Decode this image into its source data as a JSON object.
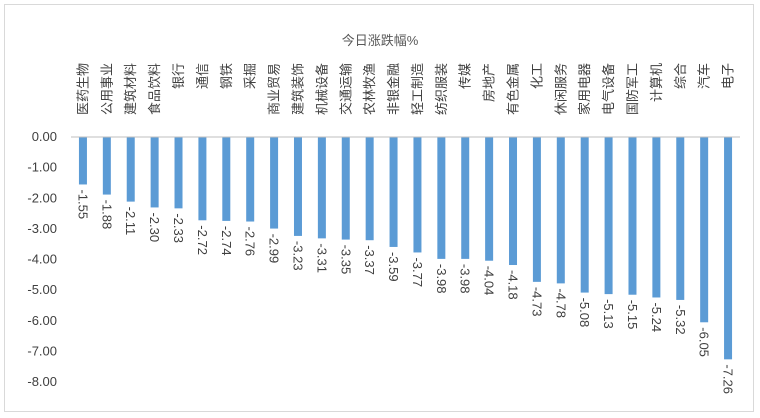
{
  "chart_data": {
    "type": "bar",
    "title": "今日涨跌幅%",
    "xlabel": "",
    "ylabel": "",
    "categories": [
      "医药生物",
      "公用事业",
      "建筑材料",
      "食品饮料",
      "银行",
      "通信",
      "钢铁",
      "采掘",
      "商业贸易",
      "建筑装饰",
      "机械设备",
      "交通运输",
      "农林牧渔",
      "非银金融",
      "轻工制造",
      "纺织服装",
      "传媒",
      "房地产",
      "有色金属",
      "化工",
      "休闲服务",
      "家用电器",
      "电气设备",
      "国防军工",
      "计算机",
      "综合",
      "汽车",
      "电子"
    ],
    "values": [
      -1.55,
      -1.88,
      -2.11,
      -2.3,
      -2.33,
      -2.72,
      -2.74,
      -2.76,
      -2.99,
      -3.23,
      -3.31,
      -3.35,
      -3.37,
      -3.59,
      -3.77,
      -3.98,
      -3.98,
      -4.04,
      -4.18,
      -4.73,
      -4.78,
      -5.08,
      -5.13,
      -5.15,
      -5.24,
      -5.32,
      -6.05,
      -7.26
    ],
    "value_labels": [
      "-1.55",
      "-1.88",
      "-2.11",
      "-2.30",
      "-2.33",
      "-2.72",
      "-2.74",
      "-2.76",
      "-2.99",
      "-3.23",
      "-3.31",
      "-3.35",
      "-3.37",
      "-3.59",
      "-3.77",
      "-3.98",
      "-3.98",
      "-4.04",
      "-4.18",
      "-4.73",
      "-4.78",
      "-5.08",
      "-5.13",
      "-5.15",
      "-5.24",
      "-5.32",
      "-6.05",
      "-7.26"
    ],
    "ylim": [
      -8.0,
      0.0
    ],
    "yticks": [
      0.0,
      -1.0,
      -2.0,
      -3.0,
      -4.0,
      -5.0,
      -6.0,
      -7.0,
      -8.0
    ],
    "ytick_labels": [
      "0.00",
      "-1.00",
      "-2.00",
      "-3.00",
      "-4.00",
      "-5.00",
      "-6.00",
      "-7.00",
      "-8.00"
    ],
    "grid": false,
    "legend": "none",
    "bar_color": "#5b9bd5"
  }
}
